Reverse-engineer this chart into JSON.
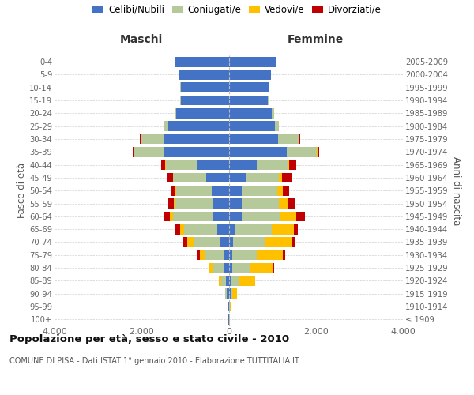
{
  "age_groups": [
    "100+",
    "95-99",
    "90-94",
    "85-89",
    "80-84",
    "75-79",
    "70-74",
    "65-69",
    "60-64",
    "55-59",
    "50-54",
    "45-49",
    "40-44",
    "35-39",
    "30-34",
    "25-29",
    "20-24",
    "15-19",
    "10-14",
    "5-9",
    "0-4"
  ],
  "birth_years": [
    "≤ 1909",
    "1910-1914",
    "1915-1919",
    "1920-1924",
    "1925-1929",
    "1930-1934",
    "1935-1939",
    "1940-1944",
    "1945-1949",
    "1950-1954",
    "1955-1959",
    "1960-1964",
    "1965-1969",
    "1970-1974",
    "1975-1979",
    "1980-1984",
    "1985-1989",
    "1990-1994",
    "1995-1999",
    "2000-2004",
    "2005-2009"
  ],
  "colors": {
    "celibi": "#4472c4",
    "coniugati": "#b5c99a",
    "vedovi": "#ffc000",
    "divorziati": "#c00000"
  },
  "males": {
    "celibi": [
      10,
      20,
      45,
      65,
      100,
      125,
      195,
      255,
      350,
      360,
      385,
      510,
      710,
      1480,
      1480,
      1380,
      1200,
      1100,
      1100,
      1150,
      1220
    ],
    "coniugati": [
      4,
      8,
      28,
      110,
      260,
      420,
      620,
      770,
      930,
      860,
      815,
      760,
      740,
      690,
      540,
      92,
      42,
      22,
      8,
      4,
      4
    ],
    "vedovi": [
      2,
      4,
      12,
      45,
      85,
      125,
      145,
      98,
      72,
      44,
      24,
      14,
      7,
      4,
      3,
      0,
      0,
      0,
      0,
      0,
      0
    ],
    "divorziati": [
      0,
      0,
      4,
      8,
      18,
      52,
      78,
      108,
      128,
      128,
      108,
      128,
      88,
      38,
      18,
      8,
      0,
      0,
      0,
      0,
      0
    ]
  },
  "females": {
    "celibi": [
      12,
      18,
      38,
      58,
      78,
      78,
      98,
      158,
      295,
      305,
      305,
      415,
      645,
      1330,
      1130,
      1060,
      990,
      890,
      910,
      970,
      1090
    ],
    "coniugati": [
      3,
      7,
      38,
      175,
      415,
      575,
      740,
      825,
      895,
      855,
      815,
      745,
      725,
      695,
      475,
      88,
      58,
      18,
      12,
      6,
      3
    ],
    "vedovi": [
      4,
      22,
      115,
      370,
      520,
      595,
      605,
      515,
      355,
      198,
      118,
      72,
      26,
      8,
      3,
      3,
      0,
      0,
      0,
      0,
      0
    ],
    "divorziati": [
      0,
      0,
      4,
      8,
      28,
      58,
      78,
      98,
      208,
      158,
      158,
      208,
      148,
      52,
      28,
      8,
      0,
      0,
      0,
      0,
      0
    ]
  },
  "xlim": 4000,
  "xtick_positions": [
    -4000,
    -2000,
    0,
    2000,
    4000
  ],
  "xtick_labels": [
    "4.000",
    "2.000",
    "0",
    "2.000",
    "4.000"
  ],
  "title": "Popolazione per età, sesso e stato civile - 2010",
  "subtitle": "COMUNE DI PISA - Dati ISTAT 1° gennaio 2010 - Elaborazione TUTTITALIA.IT",
  "ylabel_left": "Fasce di età",
  "ylabel_right": "Anni di nascita",
  "xlabel_males": "Maschi",
  "xlabel_females": "Femmine",
  "legend_labels": [
    "Celibi/Nubili",
    "Coniugati/e",
    "Vedovi/e",
    "Divorziati/e"
  ],
  "background_color": "#ffffff",
  "grid_color": "#d0d0d0",
  "bar_height": 0.78
}
